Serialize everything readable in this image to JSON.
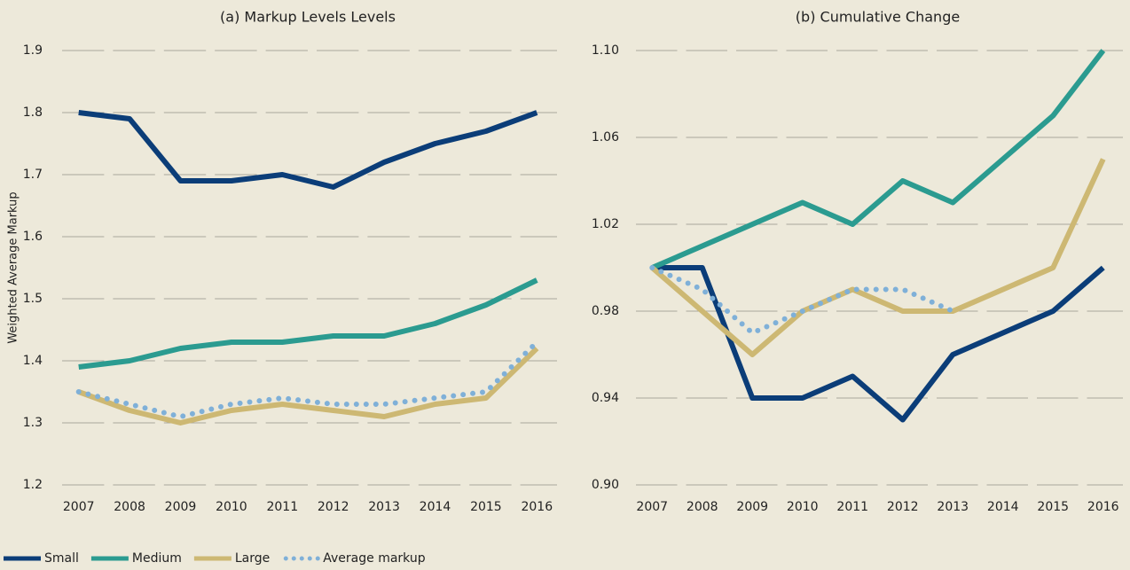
{
  "chart_data": [
    {
      "type": "line",
      "title": "(a) Markup Levels Levels",
      "y_label": "Weighted Average Markup",
      "categories": [
        "2007",
        "2008",
        "2009",
        "2010",
        "2011",
        "2012",
        "2013",
        "2014",
        "2015",
        "2016"
      ],
      "ylim": [
        1.2,
        1.9
      ],
      "yticks": [
        1.2,
        1.3,
        1.4,
        1.5,
        1.6,
        1.7,
        1.8,
        1.9
      ],
      "grid": true,
      "series": [
        {
          "name": "Small",
          "color": "#0b3d78",
          "style": "solid",
          "values": [
            1.8,
            1.79,
            1.69,
            1.69,
            1.7,
            1.68,
            1.72,
            1.75,
            1.77,
            1.8
          ]
        },
        {
          "name": "Medium",
          "color": "#2b9b90",
          "style": "solid",
          "values": [
            1.39,
            1.4,
            1.42,
            1.43,
            1.43,
            1.44,
            1.44,
            1.46,
            1.49,
            1.53
          ]
        },
        {
          "name": "Large",
          "color": "#cdb873",
          "style": "solid",
          "values": [
            1.35,
            1.32,
            1.3,
            1.32,
            1.33,
            1.32,
            1.31,
            1.33,
            1.34,
            1.42
          ]
        },
        {
          "name": "Average markup",
          "color": "#7fb0d8",
          "style": "dotted",
          "values": [
            1.35,
            1.33,
            1.31,
            1.33,
            1.34,
            1.33,
            1.33,
            1.34,
            1.35,
            1.43
          ]
        }
      ]
    },
    {
      "type": "line",
      "title": "(b) Cumulative Change",
      "categories": [
        "2007",
        "2008",
        "2009",
        "2010",
        "2011",
        "2012",
        "2013",
        "2014",
        "2015",
        "2016"
      ],
      "ylim": [
        0.9,
        1.1
      ],
      "yticks": [
        {
          "value": 0.9,
          "label": "0.90"
        },
        0.94,
        0.98,
        1.02,
        1.06,
        {
          "value": 1.1,
          "label": "1.10"
        }
      ],
      "grid": true,
      "series": [
        {
          "name": "Small",
          "color": "#0b3d78",
          "style": "solid",
          "values": [
            1.0,
            1.0,
            0.94,
            0.94,
            0.95,
            0.93,
            0.96,
            0.97,
            0.98,
            1.0
          ]
        },
        {
          "name": "Medium",
          "color": "#2b9b90",
          "style": "solid",
          "values": [
            1.0,
            1.01,
            1.02,
            1.03,
            1.02,
            1.04,
            1.03,
            1.05,
            1.07,
            1.1
          ]
        },
        {
          "name": "Large",
          "color": "#cdb873",
          "style": "solid",
          "values": [
            1.0,
            0.98,
            0.96,
            0.98,
            0.99,
            0.98,
            0.98,
            0.99,
            1.0,
            1.05
          ]
        },
        {
          "name": "Average markup",
          "color": "#7fb0d8",
          "style": "dotted",
          "values": [
            1.0,
            0.99,
            0.97,
            0.98,
            0.99,
            0.99,
            0.98,
            null,
            null,
            null
          ]
        }
      ]
    }
  ]
}
